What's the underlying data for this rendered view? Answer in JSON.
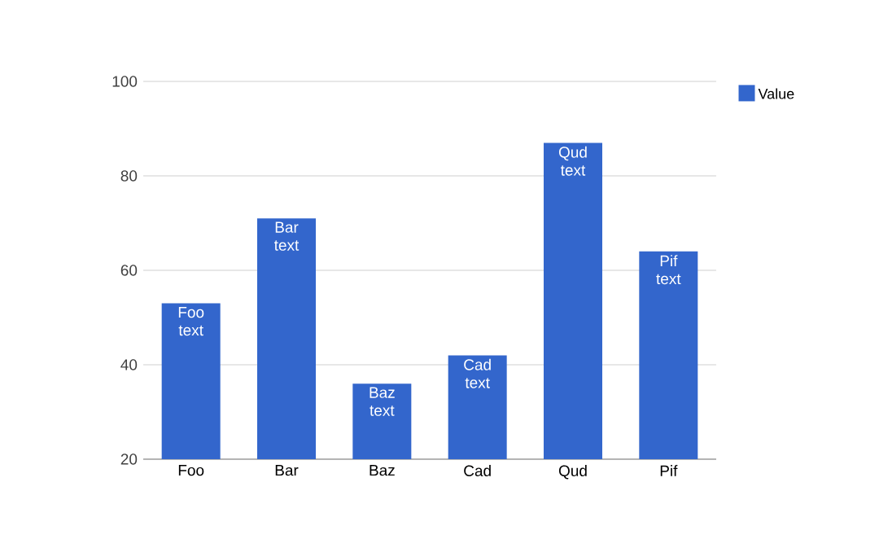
{
  "chart_data": {
    "type": "bar",
    "categories": [
      "Foo",
      "Bar",
      "Baz",
      "Cad",
      "Qud",
      "Pif"
    ],
    "series": [
      {
        "name": "Value",
        "color": "#3366cc",
        "values": [
          53,
          71,
          36,
          42,
          87,
          64
        ],
        "value_labels": [
          "Foo text",
          "Bar text",
          "Baz text",
          "Cad text",
          "Qud text",
          "Pif text"
        ]
      }
    ],
    "ylim": [
      20,
      100
    ],
    "yticks": [
      20,
      40,
      60,
      80,
      100
    ],
    "grid": "y",
    "legend": "top right"
  }
}
